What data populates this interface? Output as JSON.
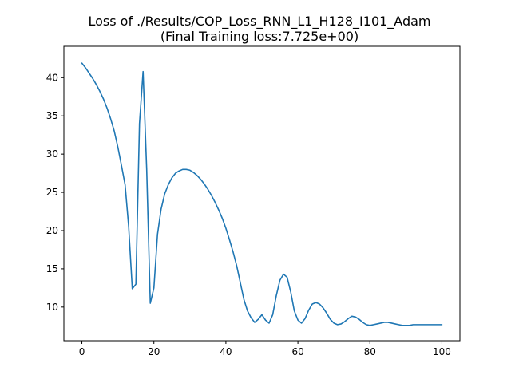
{
  "chart_data": {
    "type": "line",
    "title": "Loss of ./Results/COP_Loss_RNN_L1_H128_I101_Adam",
    "subtitle": "(Final Training loss:7.725e+00)",
    "xlabel": "",
    "ylabel": "",
    "xlim": [
      -5,
      105
    ],
    "ylim": [
      5.6,
      44.1
    ],
    "x_ticks": [
      0,
      20,
      40,
      60,
      80,
      100
    ],
    "y_ticks": [
      10,
      15,
      20,
      25,
      30,
      35,
      40
    ],
    "grid": false,
    "line_color": "#1f77b4",
    "series": [
      {
        "x": [
          0,
          1,
          2,
          3,
          4,
          5,
          6,
          7,
          8,
          9,
          10,
          11,
          12,
          13,
          14,
          15,
          16,
          17,
          18,
          19,
          20,
          21,
          22,
          23,
          24,
          25,
          26,
          27,
          28,
          29,
          30,
          31,
          32,
          33,
          34,
          35,
          36,
          37,
          38,
          39,
          40,
          41,
          42,
          43,
          44,
          45,
          46,
          47,
          48,
          49,
          50,
          51,
          52,
          53,
          54,
          55,
          56,
          57,
          58,
          59,
          60,
          61,
          62,
          63,
          64,
          65,
          66,
          67,
          68,
          69,
          70,
          71,
          72,
          73,
          74,
          75,
          76,
          77,
          78,
          79,
          80,
          81,
          82,
          83,
          84,
          85,
          86,
          87,
          88,
          89,
          90,
          91,
          92,
          93,
          94,
          95,
          96,
          97,
          98,
          99,
          100
        ],
        "values": [
          41.9,
          41.3,
          40.6,
          39.9,
          39.1,
          38.2,
          37.2,
          36.0,
          34.6,
          33.0,
          30.9,
          28.5,
          26.0,
          20.5,
          12.4,
          13.0,
          34.0,
          40.8,
          28.0,
          10.5,
          12.5,
          19.5,
          22.8,
          24.8,
          26.0,
          26.9,
          27.5,
          27.8,
          28.0,
          28.0,
          27.9,
          27.6,
          27.2,
          26.7,
          26.1,
          25.4,
          24.6,
          23.7,
          22.7,
          21.6,
          20.3,
          18.8,
          17.2,
          15.4,
          13.2,
          11.0,
          9.5,
          8.6,
          8.0,
          8.4,
          9.0,
          8.3,
          7.9,
          9.0,
          11.5,
          13.5,
          14.3,
          13.9,
          12.0,
          9.5,
          8.3,
          7.9,
          8.5,
          9.6,
          10.4,
          10.6,
          10.4,
          9.9,
          9.2,
          8.4,
          7.9,
          7.7,
          7.8,
          8.1,
          8.5,
          8.8,
          8.7,
          8.4,
          8.0,
          7.7,
          7.6,
          7.7,
          7.8,
          7.9,
          8.0,
          8.0,
          7.9,
          7.8,
          7.7,
          7.6,
          7.6,
          7.6,
          7.7,
          7.7,
          7.7,
          7.7,
          7.7,
          7.7,
          7.7,
          7.7,
          7.7
        ]
      }
    ]
  }
}
